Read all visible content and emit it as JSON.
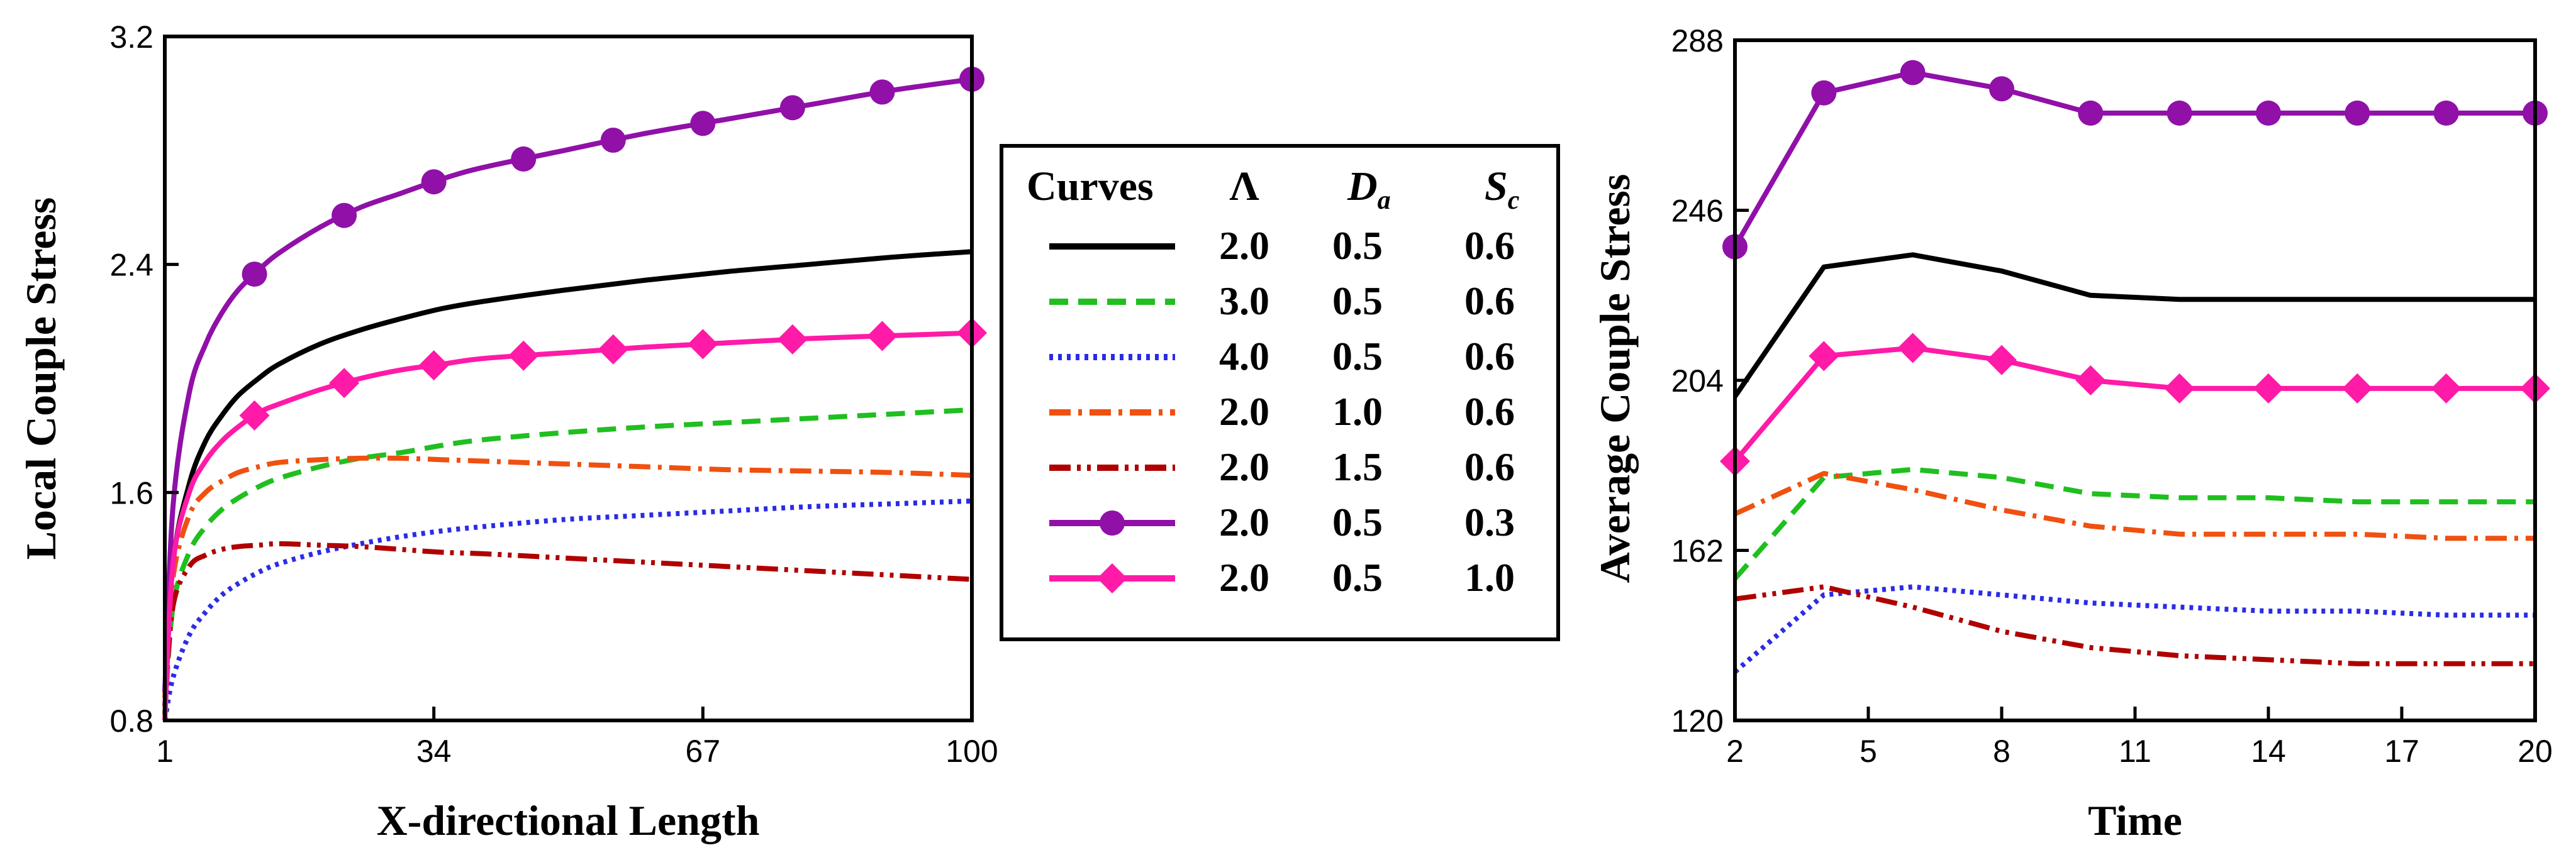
{
  "chart_data": [
    {
      "type": "line",
      "xlabel": "X-directional Length",
      "ylabel": "Local Couple Stress",
      "xlim": [
        1,
        100
      ],
      "ylim": [
        0.8,
        3.2
      ],
      "xticks": [
        "1",
        "34",
        "67",
        "100"
      ],
      "yticks": [
        "0.8",
        "1.6",
        "2.4",
        "3.2"
      ],
      "x": [
        1,
        2,
        4,
        6,
        8,
        10,
        12.5,
        15,
        20,
        25,
        30,
        35,
        40,
        50,
        60,
        70,
        80,
        90,
        100
      ],
      "series": [
        {
          "name": "Λ=2.0, Da=0.5, Sc=0.6",
          "values": [
            0.82,
            1.35,
            1.63,
            1.78,
            1.87,
            1.94,
            2.0,
            2.05,
            2.12,
            2.17,
            2.21,
            2.245,
            2.27,
            2.31,
            2.345,
            2.375,
            2.4,
            2.425,
            2.445
          ]
        },
        {
          "name": "Λ=3.0, Da=0.5, Sc=0.6",
          "values": [
            0.82,
            1.2,
            1.39,
            1.48,
            1.54,
            1.58,
            1.62,
            1.65,
            1.69,
            1.72,
            1.74,
            1.765,
            1.785,
            1.81,
            1.83,
            1.845,
            1.86,
            1.875,
            1.89
          ]
        },
        {
          "name": "Λ=4.0, Da=0.5, Sc=0.6",
          "values": [
            0.8,
            0.95,
            1.1,
            1.18,
            1.24,
            1.28,
            1.32,
            1.35,
            1.39,
            1.42,
            1.445,
            1.465,
            1.48,
            1.505,
            1.52,
            1.535,
            1.55,
            1.56,
            1.57
          ]
        },
        {
          "name": "Λ=2.0, Da=1.0, Sc=0.6",
          "values": [
            0.88,
            1.3,
            1.52,
            1.6,
            1.64,
            1.67,
            1.69,
            1.705,
            1.715,
            1.72,
            1.72,
            1.715,
            1.71,
            1.7,
            1.69,
            1.68,
            1.675,
            1.67,
            1.66
          ]
        },
        {
          "name": "Λ=2.0, Da=1.5, Sc=0.6",
          "values": [
            0.85,
            1.2,
            1.34,
            1.38,
            1.4,
            1.41,
            1.415,
            1.42,
            1.415,
            1.41,
            1.4,
            1.39,
            1.385,
            1.37,
            1.355,
            1.34,
            1.325,
            1.31,
            1.295
          ]
        },
        {
          "name": "Λ=2.0, Da=0.5, Sc=0.3",
          "values": [
            0.9,
            1.55,
            1.95,
            2.12,
            2.23,
            2.31,
            2.38,
            2.44,
            2.53,
            2.6,
            2.65,
            2.7,
            2.74,
            2.8,
            2.86,
            2.91,
            2.96,
            3.01,
            3.05
          ]
        },
        {
          "name": "Λ=2.0, Da=0.5, Sc=1.0",
          "values": [
            0.8,
            1.35,
            1.6,
            1.71,
            1.78,
            1.83,
            1.88,
            1.91,
            1.96,
            2.0,
            2.03,
            2.05,
            2.07,
            2.09,
            2.11,
            2.125,
            2.14,
            2.15,
            2.16
          ]
        }
      ]
    },
    {
      "type": "line",
      "xlabel": "Time",
      "ylabel": "Average Couple Stress",
      "xlim": [
        2,
        20
      ],
      "ylim": [
        120,
        288
      ],
      "xticks": [
        "2",
        "5",
        "8",
        "11",
        "14",
        "17",
        "20"
      ],
      "yticks": [
        "120",
        "162",
        "204",
        "246",
        "288"
      ],
      "x": [
        2,
        4,
        6,
        8,
        10,
        12,
        14,
        16,
        18,
        20
      ],
      "series": [
        {
          "name": "Λ=2.0, Da=0.5, Sc=0.6",
          "values": [
            200,
            232,
            235,
            231,
            225,
            224,
            224,
            224,
            224,
            224
          ]
        },
        {
          "name": "Λ=3.0, Da=0.5, Sc=0.6",
          "values": [
            155,
            180,
            182,
            180,
            176,
            175,
            175,
            174,
            174,
            174
          ]
        },
        {
          "name": "Λ=4.0, Da=0.5, Sc=0.6",
          "values": [
            132,
            151,
            153,
            151,
            149,
            148,
            147,
            147,
            146,
            146
          ]
        },
        {
          "name": "Λ=2.0, Da=1.0, Sc=0.6",
          "values": [
            171,
            181,
            177,
            172,
            168,
            166,
            166,
            166,
            165,
            165
          ]
        },
        {
          "name": "Λ=2.0, Da=1.5, Sc=0.6",
          "values": [
            150,
            153,
            148,
            142,
            138,
            136,
            135,
            134,
            134,
            134
          ]
        },
        {
          "name": "Λ=2.0, Da=0.5, Sc=0.3",
          "values": [
            237,
            275,
            280,
            276,
            270,
            270,
            270,
            270,
            270,
            270
          ]
        },
        {
          "name": "Λ=2.0, Da=0.5, Sc=1.0",
          "values": [
            184,
            210,
            212,
            209,
            204,
            202,
            202,
            202,
            202,
            202
          ]
        }
      ]
    }
  ],
  "legend": {
    "headers": {
      "curves": "Curves",
      "lambda": "Λ",
      "da_main": "D",
      "da_sub": "a",
      "sc_main": "S",
      "sc_sub": "c"
    },
    "rows": [
      {
        "lambda": "2.0",
        "da": "0.5",
        "sc": "0.6"
      },
      {
        "lambda": "3.0",
        "da": "0.5",
        "sc": "0.6"
      },
      {
        "lambda": "4.0",
        "da": "0.5",
        "sc": "0.6"
      },
      {
        "lambda": "2.0",
        "da": "1.0",
        "sc": "0.6"
      },
      {
        "lambda": "2.0",
        "da": "1.5",
        "sc": "0.6"
      },
      {
        "lambda": "2.0",
        "da": "0.5",
        "sc": "0.3"
      },
      {
        "lambda": "2.0",
        "da": "0.5",
        "sc": "1.0"
      }
    ]
  },
  "styles": [
    {
      "color": "#000000",
      "dash": "",
      "marker": "none"
    },
    {
      "color": "#1fbf1f",
      "dash": "30,16",
      "marker": "none"
    },
    {
      "color": "#2b2be8",
      "dash": "6,8",
      "marker": "none"
    },
    {
      "color": "#f05010",
      "dash": "34,12,6,12",
      "marker": "none"
    },
    {
      "color": "#b00000",
      "dash": "34,10,6,10,6,10",
      "marker": "none"
    },
    {
      "color": "#9010a8",
      "dash": "",
      "marker": "circle"
    },
    {
      "color": "#ff1aa8",
      "dash": "",
      "marker": "diamond"
    }
  ]
}
